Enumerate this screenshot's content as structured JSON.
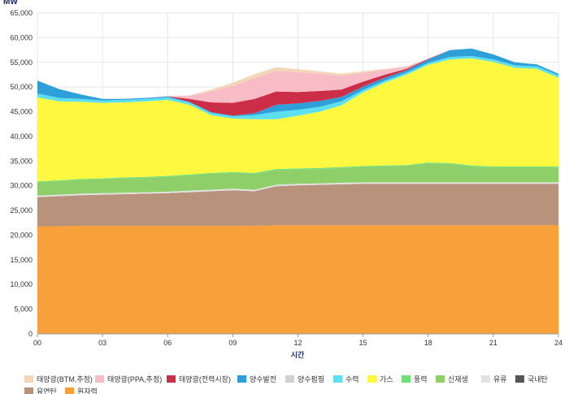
{
  "chart_data": {
    "type": "area",
    "stacked": true,
    "unit_label": "MW",
    "xlabel": "시간",
    "ylabel": "MW",
    "ylim": [
      0,
      65000
    ],
    "xlim": [
      0,
      24
    ],
    "y_ticks": [
      0,
      5000,
      10000,
      15000,
      20000,
      25000,
      30000,
      35000,
      40000,
      45000,
      50000,
      55000,
      60000,
      65000
    ],
    "y_tick_labels": [
      "0",
      "5,000",
      "10,000",
      "15,000",
      "20,000",
      "25,000",
      "30,000",
      "35,000",
      "40,000",
      "45,000",
      "50,000",
      "55,000",
      "60,000",
      "65,000"
    ],
    "x_ticks": [
      0,
      3,
      6,
      9,
      12,
      15,
      18,
      21,
      24
    ],
    "x_tick_labels": [
      "00",
      "03",
      "06",
      "09",
      "12",
      "15",
      "18",
      "21",
      "24"
    ],
    "grid": true,
    "legend_position": "bottom",
    "x": [
      0,
      1,
      2,
      3,
      4,
      5,
      6,
      7,
      8,
      9,
      10,
      11,
      12,
      13,
      14,
      15,
      16,
      17,
      18,
      19,
      20,
      21,
      22,
      23,
      24
    ],
    "series": [
      {
        "name": "원자력",
        "color": "#f8a03a",
        "values": [
          21800,
          21800,
          21900,
          21900,
          21900,
          21900,
          21900,
          21900,
          21900,
          21900,
          21900,
          22000,
          22000,
          22000,
          22000,
          22000,
          22000,
          22000,
          22000,
          22000,
          22000,
          22000,
          22000,
          22000,
          22000
        ]
      },
      {
        "name": "유연탄",
        "color": "#b8927a",
        "values": [
          5900,
          6100,
          6200,
          6300,
          6400,
          6500,
          6600,
          6800,
          7000,
          7200,
          7000,
          7900,
          8100,
          8200,
          8300,
          8400,
          8400,
          8400,
          8400,
          8400,
          8400,
          8400,
          8400,
          8400,
          8400
        ]
      },
      {
        "name": "국내탄",
        "color": "#555555",
        "values": [
          0,
          0,
          0,
          0,
          0,
          0,
          0,
          0,
          0,
          0,
          0,
          0,
          0,
          0,
          0,
          0,
          0,
          0,
          0,
          0,
          0,
          0,
          0,
          0,
          0
        ]
      },
      {
        "name": "유류",
        "color": "#e2e2e2",
        "values": [
          300,
          300,
          300,
          300,
          300,
          300,
          300,
          300,
          300,
          300,
          300,
          300,
          300,
          300,
          300,
          300,
          300,
          300,
          300,
          300,
          300,
          300,
          300,
          300,
          300
        ]
      },
      {
        "name": "신재생",
        "color": "#8fcf6a",
        "values": [
          2700,
          2700,
          2800,
          2800,
          2900,
          2900,
          3000,
          3100,
          3200,
          3200,
          3200,
          3000,
          2900,
          2900,
          3000,
          3100,
          3200,
          3300,
          3800,
          3700,
          3200,
          3000,
          3000,
          3000,
          3000
        ]
      },
      {
        "name": "풍력",
        "color": "#6de07a",
        "values": [
          200,
          200,
          200,
          200,
          200,
          200,
          200,
          200,
          200,
          200,
          200,
          200,
          200,
          200,
          200,
          200,
          200,
          200,
          200,
          200,
          200,
          200,
          200,
          200,
          200
        ]
      },
      {
        "name": "가스",
        "color": "#fef940",
        "values": [
          17000,
          16000,
          15600,
          15300,
          15200,
          15300,
          15400,
          14100,
          11700,
          10800,
          10900,
          10100,
          10700,
          11400,
          12500,
          14900,
          16800,
          18300,
          19800,
          21000,
          21700,
          21200,
          20000,
          19800,
          18000
        ]
      },
      {
        "name": "수력",
        "color": "#5ce0ef",
        "values": [
          800,
          700,
          600,
          500,
          500,
          500,
          500,
          500,
          500,
          500,
          800,
          1500,
          1200,
          1000,
          800,
          500,
          400,
          400,
          400,
          500,
          500,
          500,
          500,
          500,
          500
        ]
      },
      {
        "name": "양수발전",
        "color": "#2e9fd9",
        "values": [
          2600,
          1800,
          900,
          300,
          200,
          200,
          200,
          100,
          100,
          100,
          400,
          1400,
          1300,
          1200,
          900,
          700,
          600,
          500,
          700,
          1400,
          1500,
          1000,
          600,
          400,
          300
        ]
      },
      {
        "name": "양수펌핑",
        "color": "#d0d0d0",
        "values": [
          0,
          0,
          0,
          0,
          0,
          0,
          0,
          0,
          0,
          0,
          0,
          0,
          0,
          0,
          0,
          0,
          0,
          0,
          0,
          0,
          0,
          0,
          0,
          0,
          0
        ]
      },
      {
        "name": "태양광(전력시장)",
        "color": "#cc2e48",
        "values": [
          0,
          0,
          0,
          0,
          0,
          0,
          0,
          600,
          2000,
          2600,
          2900,
          2700,
          2300,
          2000,
          1500,
          1000,
          600,
          300,
          100,
          0,
          0,
          0,
          0,
          0,
          0
        ]
      },
      {
        "name": "태양광(PPA,추정)",
        "color": "#f7bcc6",
        "values": [
          0,
          0,
          0,
          0,
          0,
          0,
          100,
          600,
          2200,
          3400,
          4200,
          4200,
          4000,
          3500,
          2800,
          1800,
          1000,
          400,
          100,
          0,
          0,
          0,
          0,
          0,
          0
        ]
      },
      {
        "name": "태양광(BTM,추정)",
        "color": "#f3d5b8",
        "values": [
          0,
          0,
          0,
          0,
          0,
          0,
          0,
          100,
          400,
          700,
          800,
          700,
          600,
          500,
          400,
          300,
          200,
          100,
          0,
          0,
          0,
          0,
          0,
          0,
          0
        ]
      }
    ],
    "legend_entries": [
      {
        "name": "태양광(BTM,추정)",
        "color": "#f3d5b8"
      },
      {
        "name": "태양광(PPA,추정)",
        "color": "#f7bcc6"
      },
      {
        "name": "태양광(전력시장)",
        "color": "#cc2e48"
      },
      {
        "name": "양수발전",
        "color": "#2e9fd9"
      },
      {
        "name": "양수펌핑",
        "color": "#d0d0d0"
      },
      {
        "name": "수력",
        "color": "#5ce0ef"
      },
      {
        "name": "가스",
        "color": "#fef940"
      },
      {
        "name": "풍력",
        "color": "#6de07a"
      },
      {
        "name": "신재생",
        "color": "#8fcf6a"
      },
      {
        "name": "유류",
        "color": "#e2e2e2"
      },
      {
        "name": "국내탄",
        "color": "#555555"
      },
      {
        "name": "유연탄",
        "color": "#b8927a"
      },
      {
        "name": "원자력",
        "color": "#f8a03a"
      }
    ]
  }
}
